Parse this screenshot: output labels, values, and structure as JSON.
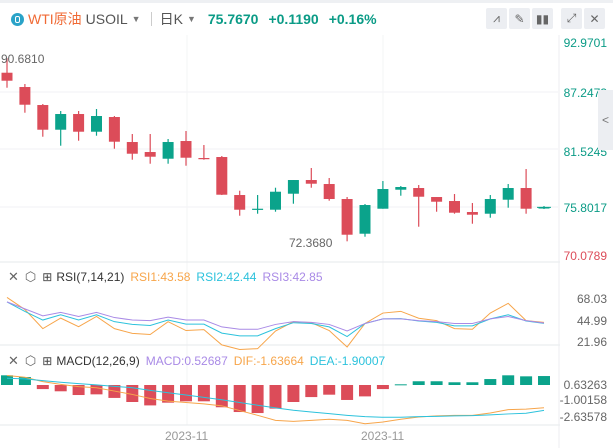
{
  "header": {
    "name": "WTI原油",
    "symbol": "USOIL",
    "period": "日K",
    "price": "75.7670",
    "change": "+0.1190",
    "change_pct": "+0.16%",
    "tools": [
      "indicator-icon",
      "draw-icon",
      "candle-type-icon",
      "fullscreen-icon",
      "close-icon"
    ]
  },
  "colors": {
    "up": "#0ba38b",
    "down": "#dc4c59",
    "rsi1": "#f7a54a",
    "rsi2": "#2cc2dc",
    "rsi3": "#a98ae6",
    "dif": "#f7a54a",
    "dea": "#2cc2dc",
    "macd": "#a98ae6"
  },
  "price_axis": {
    "labels": [
      "92.9701",
      "87.2473",
      "81.5245",
      "75.8017",
      "70.0789"
    ],
    "max_label": "90.6810",
    "min_label": "72.3680"
  },
  "candles": [
    {
      "o": 89.23,
      "h": 90.68,
      "l": 87.73,
      "c": 88.43
    },
    {
      "o": 87.8,
      "h": 88.1,
      "l": 85.23,
      "c": 86.03
    },
    {
      "o": 86.0,
      "h": 86.1,
      "l": 82.83,
      "c": 83.53
    },
    {
      "o": 83.53,
      "h": 85.4,
      "l": 81.93,
      "c": 85.1
    },
    {
      "o": 85.1,
      "h": 85.4,
      "l": 82.43,
      "c": 83.33
    },
    {
      "o": 83.33,
      "h": 85.6,
      "l": 82.93,
      "c": 84.9
    },
    {
      "o": 84.8,
      "h": 84.9,
      "l": 81.63,
      "c": 82.33
    },
    {
      "o": 82.3,
      "h": 83.1,
      "l": 80.53,
      "c": 81.13
    },
    {
      "o": 81.3,
      "h": 83.1,
      "l": 80.13,
      "c": 80.83
    },
    {
      "o": 80.63,
      "h": 82.6,
      "l": 80.13,
      "c": 82.3
    },
    {
      "o": 82.4,
      "h": 83.4,
      "l": 79.93,
      "c": 80.73
    },
    {
      "o": 80.7,
      "h": 82.0,
      "l": 80.53,
      "c": 80.6
    },
    {
      "o": 80.8,
      "h": 80.9,
      "l": 77.0,
      "c": 77.03
    },
    {
      "o": 77.0,
      "h": 77.43,
      "l": 74.93,
      "c": 75.53
    },
    {
      "o": 75.53,
      "h": 77.0,
      "l": 75.13,
      "c": 75.63
    },
    {
      "o": 75.53,
      "h": 77.73,
      "l": 75.33,
      "c": 77.33
    },
    {
      "o": 77.13,
      "h": 78.5,
      "l": 76.13,
      "c": 78.5
    },
    {
      "o": 78.5,
      "h": 79.7,
      "l": 77.73,
      "c": 78.13
    },
    {
      "o": 78.1,
      "h": 78.7,
      "l": 76.43,
      "c": 76.6
    },
    {
      "o": 76.6,
      "h": 76.8,
      "l": 72.37,
      "c": 73.03
    },
    {
      "o": 73.13,
      "h": 76.1,
      "l": 72.83,
      "c": 76.0
    },
    {
      "o": 75.63,
      "h": 78.4,
      "l": 75.63,
      "c": 77.6
    },
    {
      "o": 77.53,
      "h": 77.9,
      "l": 76.93,
      "c": 77.8
    },
    {
      "o": 77.7,
      "h": 78.0,
      "l": 73.83,
      "c": 76.83
    },
    {
      "o": 76.8,
      "h": 76.8,
      "l": 75.33,
      "c": 76.33
    },
    {
      "o": 76.4,
      "h": 77.1,
      "l": 75.13,
      "c": 75.23
    },
    {
      "o": 75.3,
      "h": 76.2,
      "l": 74.13,
      "c": 75.03
    },
    {
      "o": 75.13,
      "h": 77.0,
      "l": 74.73,
      "c": 76.6
    },
    {
      "o": 76.53,
      "h": 78.1,
      "l": 75.73,
      "c": 77.7
    },
    {
      "o": 77.7,
      "h": 79.6,
      "l": 75.13,
      "c": 75.63
    },
    {
      "o": 75.73,
      "h": 75.9,
      "l": 75.6,
      "c": 75.767
    }
  ],
  "rsi": {
    "title": "RSI(7,14,21)",
    "rsi1_label": "RSI1:43.58",
    "rsi2_label": "RSI2:42.44",
    "rsi3_label": "RSI3:42.85",
    "axis": [
      "68.03",
      "44.99",
      "21.96"
    ],
    "rsi1": [
      69.7,
      57,
      37,
      48,
      39,
      49.7,
      37,
      32,
      30.8,
      44.3,
      35,
      36,
      20,
      15.2,
      16,
      34.5,
      44.3,
      43.2,
      35,
      17.8,
      42.4,
      53.3,
      55.1,
      47.9,
      45.4,
      37,
      36.3,
      53.3,
      63.5,
      45.4,
      43.58
    ],
    "rsi2": [
      65,
      55,
      46,
      51.5,
      46,
      51.5,
      44.3,
      41.4,
      40.3,
      46,
      41.7,
      41.7,
      32.3,
      29.4,
      29.4,
      37,
      43.2,
      42.4,
      38.8,
      28.7,
      42.4,
      47.2,
      47.5,
      45,
      43.5,
      39.9,
      39.9,
      47.2,
      51.5,
      45,
      42.44
    ],
    "rsi3": [
      65,
      57.7,
      50.4,
      54,
      49.7,
      54,
      48.6,
      46,
      45.4,
      49,
      46,
      46,
      38.8,
      36.3,
      36.3,
      41.4,
      44.3,
      43.5,
      41.4,
      34.5,
      42.4,
      47.2,
      47.2,
      45.4,
      44.3,
      42.4,
      42.4,
      47.2,
      49.7,
      45.4,
      42.85
    ]
  },
  "macd": {
    "title": "MACD(12,26,9)",
    "macd_label": "MACD:0.52687",
    "dif_label": "DIF:-1.63664",
    "dea_label": "DEA:-1.90007",
    "axis": [
      "0.63263",
      "-1.00158",
      "-2.63578"
    ],
    "hist": [
      0.57,
      0.47,
      -0.24,
      -0.37,
      -0.59,
      -0.55,
      -0.76,
      -1.0,
      -1.2,
      -1.04,
      -0.96,
      -0.96,
      -1.31,
      -1.59,
      -1.65,
      -1.39,
      -1.0,
      -0.71,
      -0.57,
      -0.88,
      -0.67,
      -0.24,
      0.04,
      0.22,
      0.22,
      0.16,
      0.16,
      0.35,
      0.57,
      0.51,
      0.52687
    ],
    "dif": [
      1.62,
      1.45,
      1.0,
      0.73,
      0.5,
      0.39,
      0.05,
      -0.29,
      -0.7,
      -0.97,
      -1.1,
      -1.24,
      -1.44,
      -1.92,
      -2.4,
      -2.91,
      -3.01,
      -2.91,
      -2.8,
      -2.91,
      -3.25,
      -3.08,
      -2.8,
      -2.57,
      -2.46,
      -2.4,
      -2.4,
      -2.16,
      -1.82,
      -1.78,
      -1.63664
    ],
    "dea": [
      1.35,
      1.28,
      1.11,
      0.94,
      0.8,
      0.67,
      0.53,
      0.39,
      0.12,
      -0.12,
      -0.35,
      -0.59,
      -0.83,
      -1.1,
      -1.38,
      -1.65,
      -1.89,
      -2.06,
      -2.23,
      -2.4,
      -2.53,
      -2.6,
      -2.6,
      -2.53,
      -2.5,
      -2.46,
      -2.43,
      -2.36,
      -2.26,
      -2.19,
      -1.90007
    ]
  },
  "x_axis": {
    "labels": [
      "2023-11",
      "2023-11"
    ]
  }
}
